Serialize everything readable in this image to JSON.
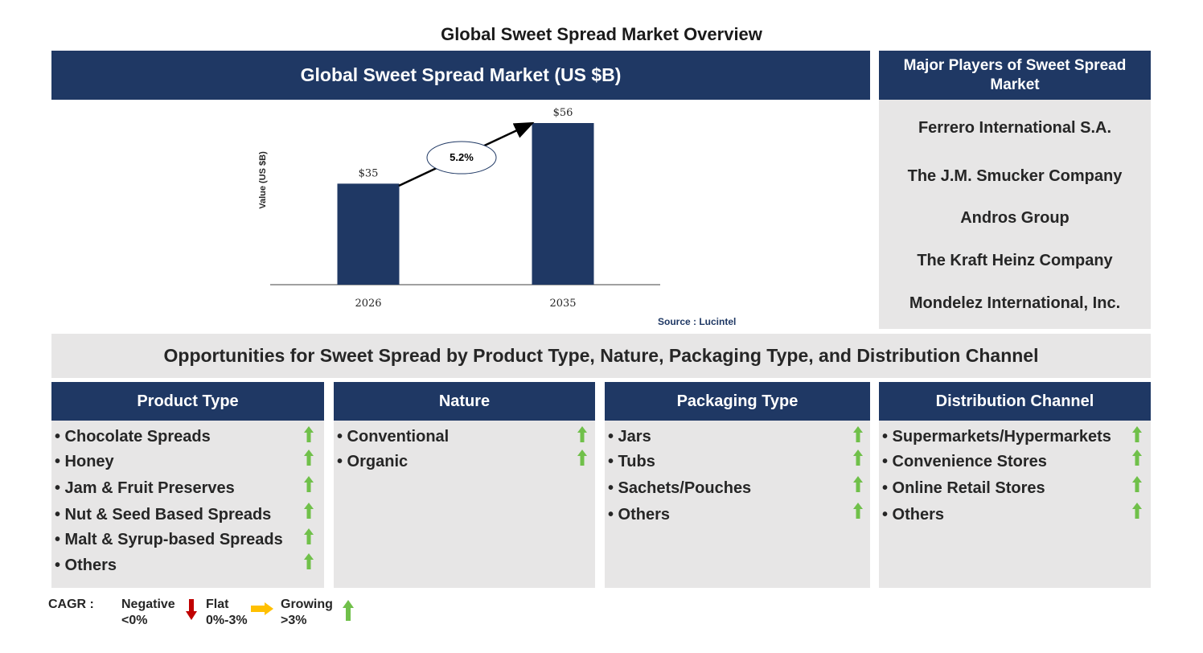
{
  "title": "Global Sweet Spread Market Overview",
  "chart_header": "Global Sweet Spread Market (US $B)",
  "chart_data": {
    "type": "bar",
    "categories": [
      "2026",
      "2035"
    ],
    "values": [
      35,
      56
    ],
    "value_labels": [
      "$35",
      "$56"
    ],
    "ylabel": "Value (US $B)",
    "ylim": [
      0,
      56
    ],
    "cagr_label": "5.2%",
    "colors": {
      "bar": "#1f3864"
    }
  },
  "source": "Source : Lucintel",
  "players": {
    "title": "Major Players of Sweet Spread Market",
    "items": [
      "Ferrero International S.A.",
      "The J.M. Smucker Company",
      "Andros Group",
      "The Kraft Heinz Company",
      "Mondelez International, Inc."
    ]
  },
  "opportunities_title": "Opportunities for Sweet Spread by Product Type, Nature, Packaging Type, and Distribution Channel",
  "segments": [
    {
      "title": "Product Type",
      "items": [
        "• Chocolate Spreads",
        "• Honey",
        "• Jam & Fruit Preserves",
        "• Nut & Seed Based Spreads",
        "• Malt & Syrup-based Spreads",
        "• Others"
      ]
    },
    {
      "title": "Nature",
      "items": [
        "• Conventional",
        "• Organic"
      ]
    },
    {
      "title": "Packaging Type",
      "items": [
        "• Jars",
        "• Tubs",
        "• Sachets/Pouches",
        "• Others"
      ]
    },
    {
      "title": "Distribution Channel",
      "items": [
        "• Supermarkets/Hypermarkets",
        "• Convenience Stores",
        "• Online Retail Stores",
        "• Others"
      ]
    }
  ],
  "legend": {
    "cagr_label": "CAGR :",
    "negative": [
      "Negative",
      "<0%"
    ],
    "flat": [
      "Flat",
      "0%-3%"
    ],
    "growing": [
      "Growing",
      ">3%"
    ]
  },
  "colors": {
    "navy": "#1f3864",
    "panel_gray": "#e7e6e6",
    "growing_green": "#70c04a",
    "negative_red": "#c00000",
    "flat_orange": "#ffc000"
  }
}
